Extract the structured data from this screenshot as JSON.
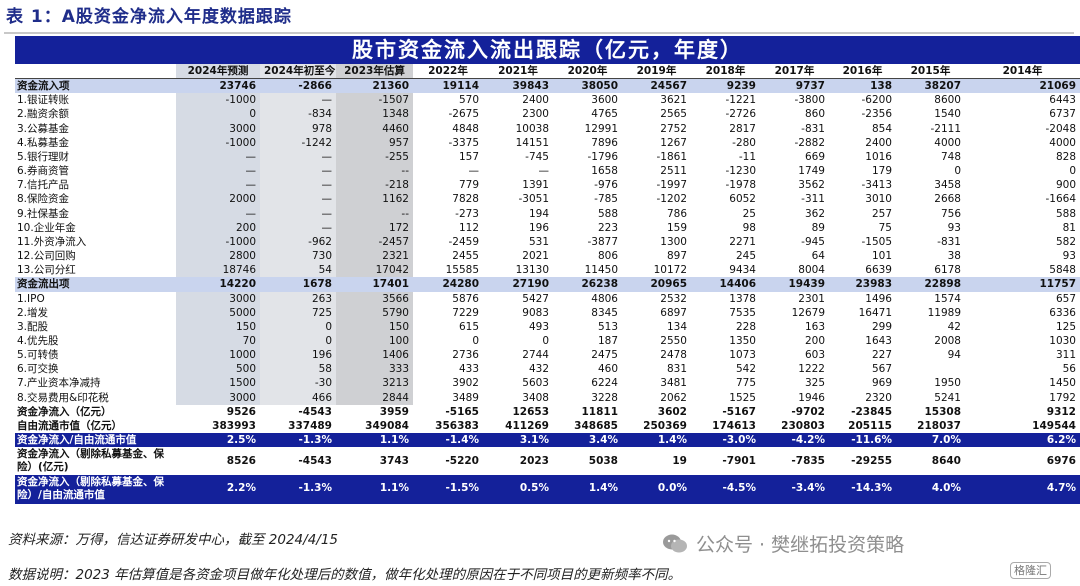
{
  "caption": "表 1：A股资金净流入年度数据跟踪",
  "banner": "股市资金流入流出跟踪（亿元，年度）",
  "columns": [
    "",
    "2024年预测",
    "2024年初至今",
    "2023年估算",
    "2022年",
    "2021年",
    "2020年",
    "2019年",
    "2018年",
    "2017年",
    "2016年",
    "2015年",
    "2014年"
  ],
  "rows": [
    {
      "type": "sec",
      "cells": [
        "资金流入项",
        "23746",
        "-2866",
        "21360",
        "19114",
        "39843",
        "38050",
        "24567",
        "9239",
        "9737",
        "138",
        "38207",
        "21069"
      ]
    },
    {
      "type": "n",
      "cells": [
        "1.银证转账",
        "-1000",
        "—",
        "-1507",
        "570",
        "2400",
        "3600",
        "3621",
        "-1221",
        "-3800",
        "-6200",
        "8600",
        "6443"
      ]
    },
    {
      "type": "n",
      "cells": [
        "2.融资余额",
        "0",
        "-834",
        "1348",
        "-2675",
        "2300",
        "4765",
        "2565",
        "-2726",
        "860",
        "-2356",
        "1540",
        "6737"
      ]
    },
    {
      "type": "n",
      "cells": [
        "3.公募基金",
        "3000",
        "978",
        "4460",
        "4848",
        "10038",
        "12991",
        "2752",
        "2817",
        "-831",
        "854",
        "-2111",
        "-2048"
      ]
    },
    {
      "type": "n",
      "cells": [
        "4.私募基金",
        "-1000",
        "-1242",
        "957",
        "-3375",
        "14151",
        "7896",
        "1267",
        "-280",
        "-2882",
        "2400",
        "4000",
        "4000"
      ]
    },
    {
      "type": "n",
      "cells": [
        "5.银行理财",
        "—",
        "—",
        "-255",
        "157",
        "-745",
        "-1796",
        "-1861",
        "-11",
        "669",
        "1016",
        "748",
        "828"
      ]
    },
    {
      "type": "n",
      "cells": [
        "6.券商资管",
        "—",
        "—",
        "--",
        "—",
        "—",
        "1658",
        "2511",
        "-1230",
        "1749",
        "179",
        "0",
        "0"
      ]
    },
    {
      "type": "n",
      "cells": [
        "7.信托产品",
        "—",
        "—",
        "-218",
        "779",
        "1391",
        "-976",
        "-1997",
        "-1978",
        "3562",
        "-3413",
        "3458",
        "900"
      ]
    },
    {
      "type": "n",
      "cells": [
        "8.保险资金",
        "2000",
        "—",
        "1162",
        "7828",
        "-3051",
        "-785",
        "-1202",
        "6052",
        "-311",
        "3010",
        "2668",
        "-1664"
      ]
    },
    {
      "type": "n",
      "cells": [
        "9.社保基金",
        "—",
        "—",
        "--",
        "-273",
        "194",
        "588",
        "786",
        "25",
        "362",
        "257",
        "756",
        "588"
      ]
    },
    {
      "type": "n",
      "cells": [
        "10.企业年金",
        "200",
        "—",
        "172",
        "112",
        "196",
        "223",
        "159",
        "98",
        "89",
        "75",
        "93",
        "81"
      ]
    },
    {
      "type": "n",
      "cells": [
        "11.外资净流入",
        "-1000",
        "-962",
        "-2457",
        "-2459",
        "531",
        "-3877",
        "1300",
        "2271",
        "-945",
        "-1505",
        "-831",
        "582"
      ]
    },
    {
      "type": "n",
      "cells": [
        "12.公司回购",
        "2800",
        "730",
        "2321",
        "2455",
        "2021",
        "806",
        "897",
        "245",
        "64",
        "101",
        "38",
        "93"
      ]
    },
    {
      "type": "n",
      "cells": [
        "13.公司分红",
        "18746",
        "54",
        "17042",
        "15585",
        "13130",
        "11450",
        "10172",
        "9434",
        "8004",
        "6639",
        "6178",
        "5848"
      ]
    },
    {
      "type": "sec",
      "cells": [
        "资金流出项",
        "14220",
        "1678",
        "17401",
        "24280",
        "27190",
        "26238",
        "20965",
        "14406",
        "19439",
        "23983",
        "22898",
        "11757"
      ]
    },
    {
      "type": "n",
      "cells": [
        "1.IPO",
        "3000",
        "263",
        "3566",
        "5876",
        "5427",
        "4806",
        "2532",
        "1378",
        "2301",
        "1496",
        "1574",
        "657"
      ]
    },
    {
      "type": "n",
      "cells": [
        "2.增发",
        "5000",
        "725",
        "5790",
        "7229",
        "9083",
        "8345",
        "6897",
        "7535",
        "12679",
        "16471",
        "11989",
        "6336"
      ]
    },
    {
      "type": "n",
      "cells": [
        "3.配股",
        "150",
        "0",
        "150",
        "615",
        "493",
        "513",
        "134",
        "228",
        "163",
        "299",
        "42",
        "125"
      ]
    },
    {
      "type": "n",
      "cells": [
        "4.优先股",
        "70",
        "0",
        "100",
        "0",
        "0",
        "187",
        "2550",
        "1350",
        "200",
        "1643",
        "2008",
        "1030"
      ]
    },
    {
      "type": "n",
      "cells": [
        "5.可转债",
        "1000",
        "196",
        "1406",
        "2736",
        "2744",
        "2475",
        "2478",
        "1073",
        "603",
        "227",
        "94",
        "311"
      ]
    },
    {
      "type": "n",
      "cells": [
        "6.可交换",
        "500",
        "58",
        "333",
        "433",
        "432",
        "460",
        "831",
        "542",
        "1222",
        "567",
        "",
        "56"
      ]
    },
    {
      "type": "n",
      "cells": [
        "7.产业资本净减持",
        "1500",
        "-30",
        "3213",
        "3902",
        "5603",
        "6224",
        "3481",
        "775",
        "325",
        "969",
        "1950",
        "1450"
      ]
    },
    {
      "type": "n",
      "cells": [
        "8.交易费用&印花税",
        "3000",
        "466",
        "2844",
        "3489",
        "3408",
        "3228",
        "2062",
        "1525",
        "1946",
        "2320",
        "5241",
        "1792"
      ]
    },
    {
      "type": "sub",
      "cells": [
        "资金净流入（亿元）",
        "9526",
        "-4543",
        "3959",
        "-5165",
        "12653",
        "11811",
        "3602",
        "-5167",
        "-9702",
        "-23845",
        "15308",
        "9312"
      ]
    },
    {
      "type": "sub",
      "cells": [
        "自由流通市值（亿元）",
        "383993",
        "337489",
        "349084",
        "356383",
        "411269",
        "348685",
        "250369",
        "174613",
        "230803",
        "205115",
        "218037",
        "149544"
      ]
    },
    {
      "type": "blue",
      "cells": [
        "资金净流入/自由流通市值",
        "2.5%",
        "-1.3%",
        "1.1%",
        "-1.4%",
        "3.1%",
        "3.4%",
        "1.4%",
        "-3.0%",
        "-4.2%",
        "-11.6%",
        "7.0%",
        "6.2%"
      ]
    },
    {
      "type": "tall",
      "cells": [
        "资金净流入（剔除私募基金、保险）(亿元)",
        "8526",
        "-4543",
        "3743",
        "-5220",
        "2023",
        "5038",
        "19",
        "-7901",
        "-7835",
        "-29255",
        "8640",
        "6976"
      ]
    },
    {
      "type": "blue-tall",
      "cells": [
        "资金净流入（剔除私募基金、保险）/自由流通市值",
        "2.2%",
        "-1.3%",
        "1.1%",
        "-1.5%",
        "0.5%",
        "1.4%",
        "0.0%",
        "-4.5%",
        "-3.4%",
        "-14.3%",
        "4.0%",
        "4.7%"
      ]
    }
  ],
  "source": "资料来源：万得，信达证券研发中心，截至 2024/4/15",
  "note": "数据说明：2023 年估算值是各资金项目做年化处理后的数值，做年化处理的原因在于不同项目的更新频率不同。",
  "watermark": "公众号 · 樊继拓投资策略",
  "watermark_icon": "wechat-icon",
  "badge": "格隆汇"
}
